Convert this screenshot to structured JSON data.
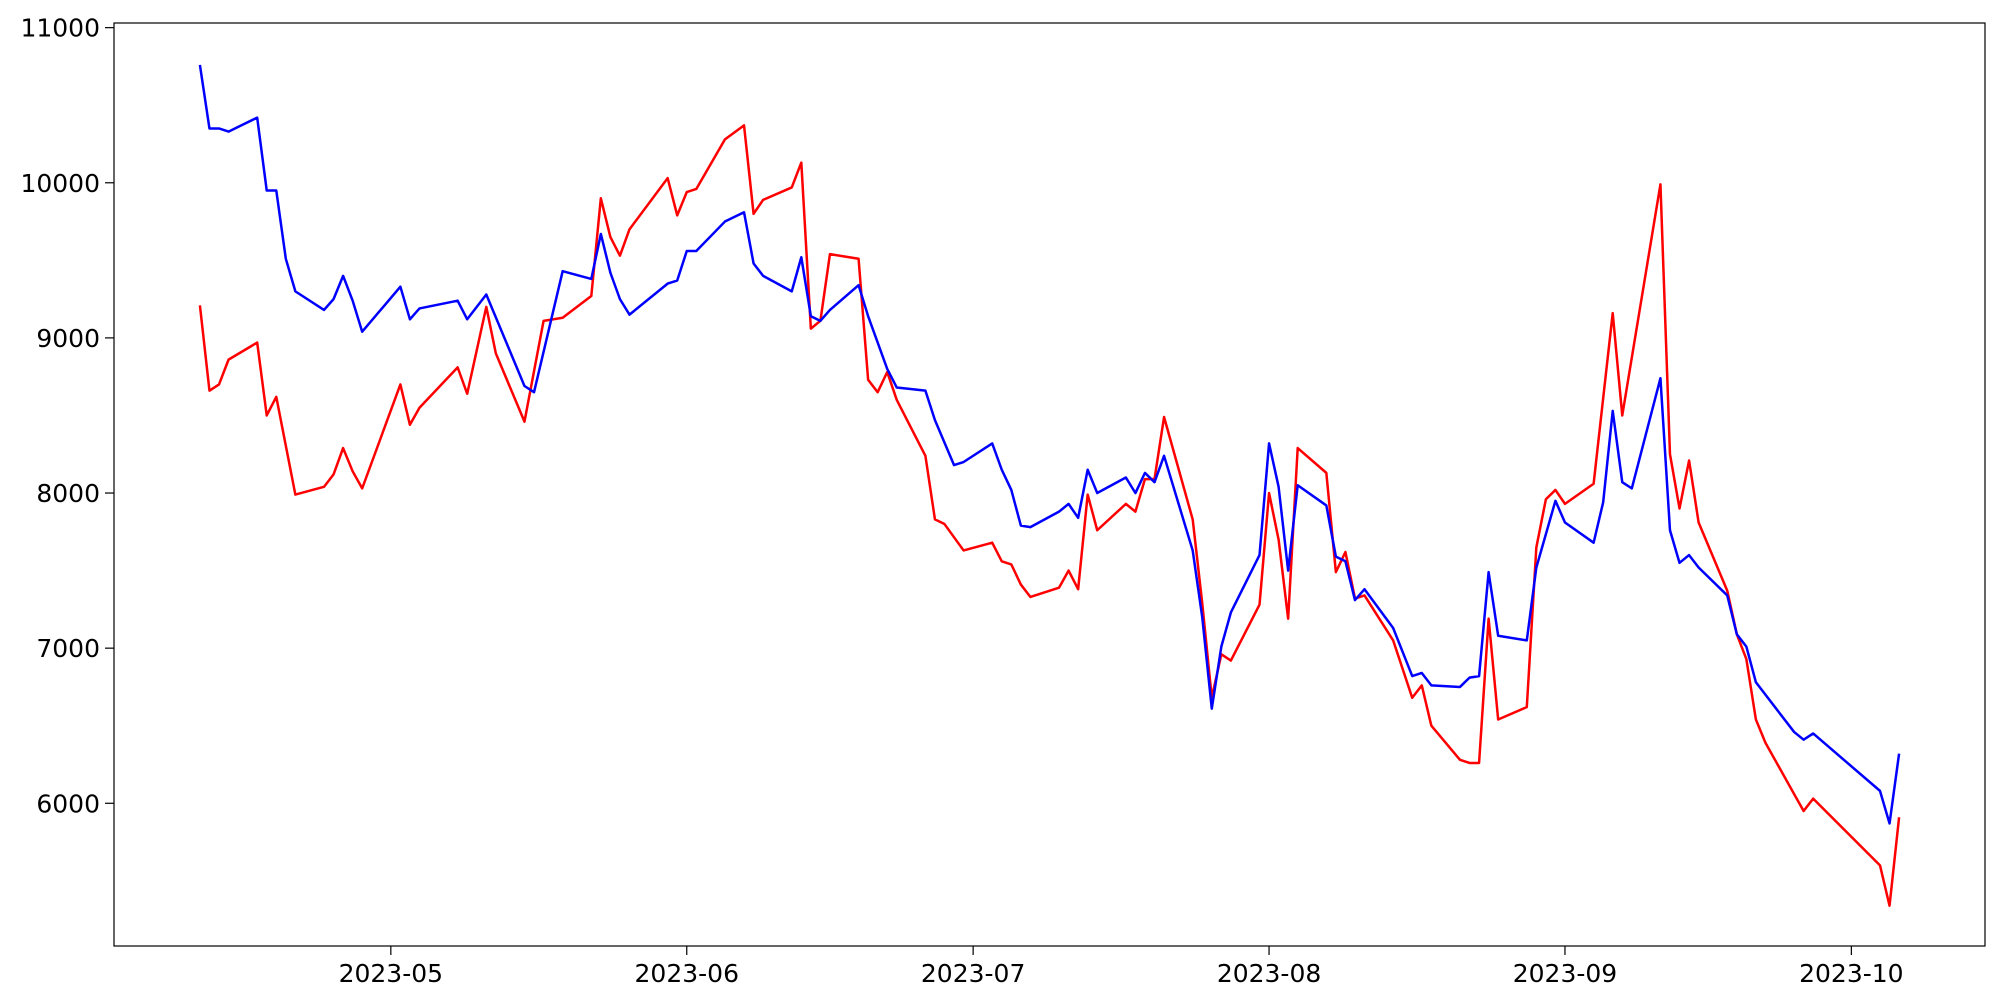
{
  "chart_data": {
    "type": "line",
    "xlim": [
      92,
      288
    ],
    "xticks": [
      {
        "value": 121,
        "label": "2023-05"
      },
      {
        "value": 152,
        "label": "2023-06"
      },
      {
        "value": 182,
        "label": "2023-07"
      },
      {
        "value": 213,
        "label": "2023-08"
      },
      {
        "value": 244,
        "label": "2023-09"
      },
      {
        "value": 274,
        "label": "2023-10"
      }
    ],
    "ylim": [
      5080,
      11030
    ],
    "yticks": [
      6000,
      7000,
      8000,
      9000,
      10000,
      11000
    ],
    "series": [
      {
        "color": "red",
        "x": [
          101,
          102,
          103,
          104,
          107,
          108,
          109,
          111,
          114,
          115,
          116,
          117,
          118,
          122,
          123,
          124,
          128,
          129,
          131,
          132,
          135,
          137,
          139,
          142,
          143,
          144,
          145,
          146,
          150,
          151,
          152,
          153,
          156,
          158,
          159,
          160,
          163,
          164,
          165,
          166,
          167,
          170,
          171,
          172,
          173,
          174,
          177,
          178,
          179,
          181,
          184,
          185,
          186,
          187,
          188,
          191,
          192,
          193,
          194,
          195,
          198,
          199,
          200,
          201,
          202,
          205,
          206,
          207,
          208,
          209,
          212,
          213,
          214,
          215,
          216,
          219,
          220,
          221,
          222,
          223,
          226,
          228,
          229,
          230,
          233,
          234,
          235,
          236,
          237,
          240,
          241,
          242,
          243,
          244,
          247,
          248,
          249,
          250,
          254,
          255,
          256,
          257,
          258,
          261,
          262,
          263,
          264,
          265,
          268,
          269,
          270,
          277,
          278,
          279
        ],
        "values": [
          9210,
          8660,
          8700,
          8860,
          8970,
          8500,
          8620,
          7990,
          8040,
          8120,
          8290,
          8140,
          8030,
          8700,
          8440,
          8550,
          8810,
          8640,
          9200,
          8900,
          8460,
          9110,
          9130,
          9270,
          9900,
          9650,
          9530,
          9700,
          10030,
          9790,
          9940,
          9960,
          10280,
          10370,
          9800,
          9890,
          9970,
          10130,
          9060,
          9110,
          9540,
          9510,
          8730,
          8650,
          8780,
          8600,
          8240,
          7830,
          7800,
          7630,
          7680,
          7560,
          7540,
          7410,
          7330,
          7390,
          7500,
          7380,
          7990,
          7760,
          7930,
          7880,
          8090,
          8090,
          8490,
          7830,
          7290,
          6680,
          6960,
          6920,
          7280,
          8000,
          7700,
          7190,
          8290,
          8130,
          7490,
          7620,
          7320,
          7340,
          7050,
          6680,
          6760,
          6500,
          6280,
          6260,
          6260,
          7190,
          6540,
          6620,
          7650,
          7960,
          8020,
          7930,
          8060,
          8610,
          9160,
          8500,
          9990,
          8250,
          7900,
          8210,
          7810,
          7370,
          7090,
          6930,
          6540,
          6390,
          6060,
          5950,
          6030,
          5600,
          5340,
          5910
        ]
      },
      {
        "color": "blue",
        "x": [
          101,
          102,
          103,
          104,
          107,
          108,
          109,
          110,
          111,
          114,
          115,
          116,
          117,
          118,
          122,
          123,
          124,
          128,
          129,
          131,
          135,
          136,
          139,
          142,
          143,
          144,
          145,
          146,
          150,
          151,
          152,
          153,
          156,
          158,
          159,
          160,
          163,
          164,
          165,
          166,
          167,
          170,
          171,
          173,
          174,
          177,
          178,
          180,
          181,
          184,
          185,
          186,
          187,
          188,
          191,
          192,
          193,
          194,
          195,
          198,
          199,
          200,
          201,
          202,
          205,
          206,
          207,
          208,
          209,
          212,
          213,
          214,
          215,
          216,
          219,
          220,
          221,
          222,
          223,
          226,
          228,
          229,
          230,
          233,
          234,
          235,
          236,
          237,
          240,
          241,
          243,
          244,
          247,
          248,
          249,
          250,
          251,
          254,
          255,
          256,
          257,
          258,
          261,
          262,
          263,
          264,
          268,
          269,
          270,
          277,
          278,
          279
        ],
        "values": [
          10760,
          10350,
          10350,
          10330,
          10420,
          9950,
          9950,
          9510,
          9300,
          9180,
          9250,
          9400,
          9240,
          9040,
          9330,
          9120,
          9190,
          9240,
          9120,
          9280,
          8690,
          8650,
          9430,
          9380,
          9670,
          9420,
          9250,
          9150,
          9350,
          9370,
          9560,
          9560,
          9750,
          9810,
          9480,
          9400,
          9300,
          9520,
          9140,
          9110,
          9180,
          9340,
          9140,
          8800,
          8680,
          8660,
          8470,
          8180,
          8200,
          8320,
          8150,
          8020,
          7790,
          7780,
          7880,
          7930,
          7840,
          8150,
          8000,
          8100,
          8000,
          8130,
          8070,
          8240,
          7630,
          7200,
          6610,
          7010,
          7230,
          7600,
          8320,
          8040,
          7500,
          8050,
          7920,
          7590,
          7560,
          7310,
          7380,
          7130,
          6820,
          6840,
          6760,
          6750,
          6810,
          6820,
          7490,
          7080,
          7050,
          7520,
          7950,
          7810,
          7680,
          7940,
          8530,
          8070,
          8030,
          8740,
          7760,
          7550,
          7600,
          7520,
          7340,
          7090,
          7010,
          6780,
          6460,
          6410,
          6450,
          6080,
          5870,
          6320
        ]
      }
    ]
  }
}
